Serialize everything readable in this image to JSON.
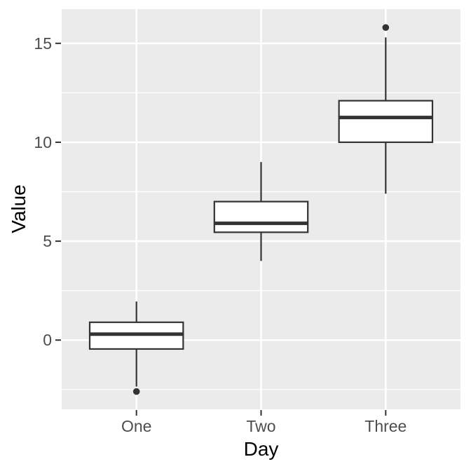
{
  "chart_data": {
    "type": "boxplot",
    "title": "",
    "xlabel": "Day",
    "ylabel": "Value",
    "categories": [
      "One",
      "Two",
      "Three"
    ],
    "series": [
      {
        "category": "One",
        "whisker_low": -2.35,
        "q1": -0.45,
        "median": 0.3,
        "q3": 0.9,
        "whisker_high": 1.95,
        "outliers": [
          -2.6
        ]
      },
      {
        "category": "Two",
        "whisker_low": 4.0,
        "q1": 5.45,
        "median": 5.9,
        "q3": 7.0,
        "whisker_high": 9.0,
        "outliers": []
      },
      {
        "category": "Three",
        "whisker_low": 7.4,
        "q1": 10.0,
        "median": 11.25,
        "q3": 12.1,
        "whisker_high": 15.3,
        "outliers": [
          15.8
        ]
      }
    ],
    "ylim": [
      -3.5,
      16.73
    ],
    "yticks_major": [
      0,
      5,
      10,
      15
    ],
    "ytick_labels": [
      "0",
      "5",
      "10",
      "15"
    ],
    "yticks_minor": [
      -2.5,
      2.5,
      7.5,
      12.5
    ],
    "grid": "horizontal major+minor, vertical major at categories",
    "legend": false,
    "colors": {
      "figure_bg": "#FFFFFF",
      "panel_bg": "#EBEBEB",
      "grid": "#FFFFFF",
      "box_stroke": "#333333",
      "box_fill": "#FFFFFF",
      "median": "#333333",
      "whisker": "#333333",
      "outlier": "#333333",
      "tick_mark": "#333333",
      "tick_label_color": "#4D4D4D",
      "axis_title_color": "#000000"
    }
  }
}
